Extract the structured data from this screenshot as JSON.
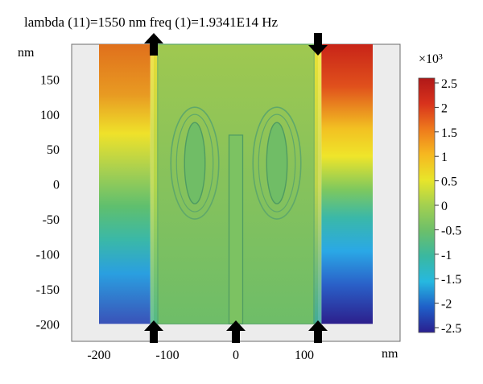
{
  "chart_data": {
    "type": "heatmap",
    "title": "lambda (11)=1550 nm freq (1)=1.9341E14 Hz",
    "xlabel": "nm",
    "ylabel": "nm",
    "xlim": [
      -240,
      240
    ],
    "ylim": [
      -225,
      200
    ],
    "x_ticks": [
      -200,
      -100,
      0,
      100
    ],
    "x_tick_labels": [
      "-200",
      "-100",
      "0",
      "100"
    ],
    "y_ticks": [
      150,
      100,
      50,
      0,
      -50,
      -100,
      -150,
      -200
    ],
    "y_tick_labels": [
      "150",
      "100",
      "50",
      "0",
      "-50",
      "-100",
      "-150",
      "-200"
    ],
    "grid": false,
    "colorbar": {
      "multiplier_label": "×10³",
      "min": -2.5,
      "max": 2.5,
      "ticks": [
        2.5,
        2,
        1.5,
        1,
        0.5,
        0,
        -0.5,
        -1,
        -1.5,
        -2,
        -2.5
      ],
      "tick_labels": [
        "2.5",
        "2",
        "1.5",
        "1",
        "0.5",
        "0",
        "-0.5",
        "-1",
        "-1.5",
        "-2",
        "-2.5"
      ],
      "colors": [
        "#2a1f8f",
        "#1f5fc8",
        "#26b8e0",
        "#3ab8a0",
        "#6cbf6a",
        "#a3d050",
        "#e8e52a",
        "#f6b820",
        "#ee7a1c",
        "#d8321c",
        "#b01818"
      ]
    },
    "regions": {
      "left_block": {
        "x": [
          -200,
          -125
        ],
        "y": [
          -200,
          200
        ],
        "value_top": 1.9,
        "value_bottom": -1.9
      },
      "right_block": {
        "x": [
          125,
          200
        ],
        "y": [
          -200,
          200
        ],
        "value_top": 2.5,
        "value_bottom": -2.5
      },
      "waveguide": {
        "x": [
          -120,
          120
        ],
        "y": [
          -200,
          200
        ],
        "value": 0.2
      },
      "left_ring": {
        "cx": -60,
        "cy": 30,
        "rx": 35,
        "ry": 80
      },
      "right_ring": {
        "cx": 60,
        "cy": 30,
        "rx": 35,
        "ry": 80
      },
      "center_stub": {
        "x": [
          -10,
          10
        ],
        "y": [
          -200,
          70
        ]
      }
    },
    "arrows": [
      {
        "x": -120,
        "direction": "up",
        "edge": "top"
      },
      {
        "x": 120,
        "direction": "down",
        "edge": "top"
      },
      {
        "x": -120,
        "direction": "up",
        "edge": "bottom"
      },
      {
        "x": 0,
        "direction": "up",
        "edge": "bottom"
      },
      {
        "x": 120,
        "direction": "up",
        "edge": "bottom"
      }
    ]
  }
}
